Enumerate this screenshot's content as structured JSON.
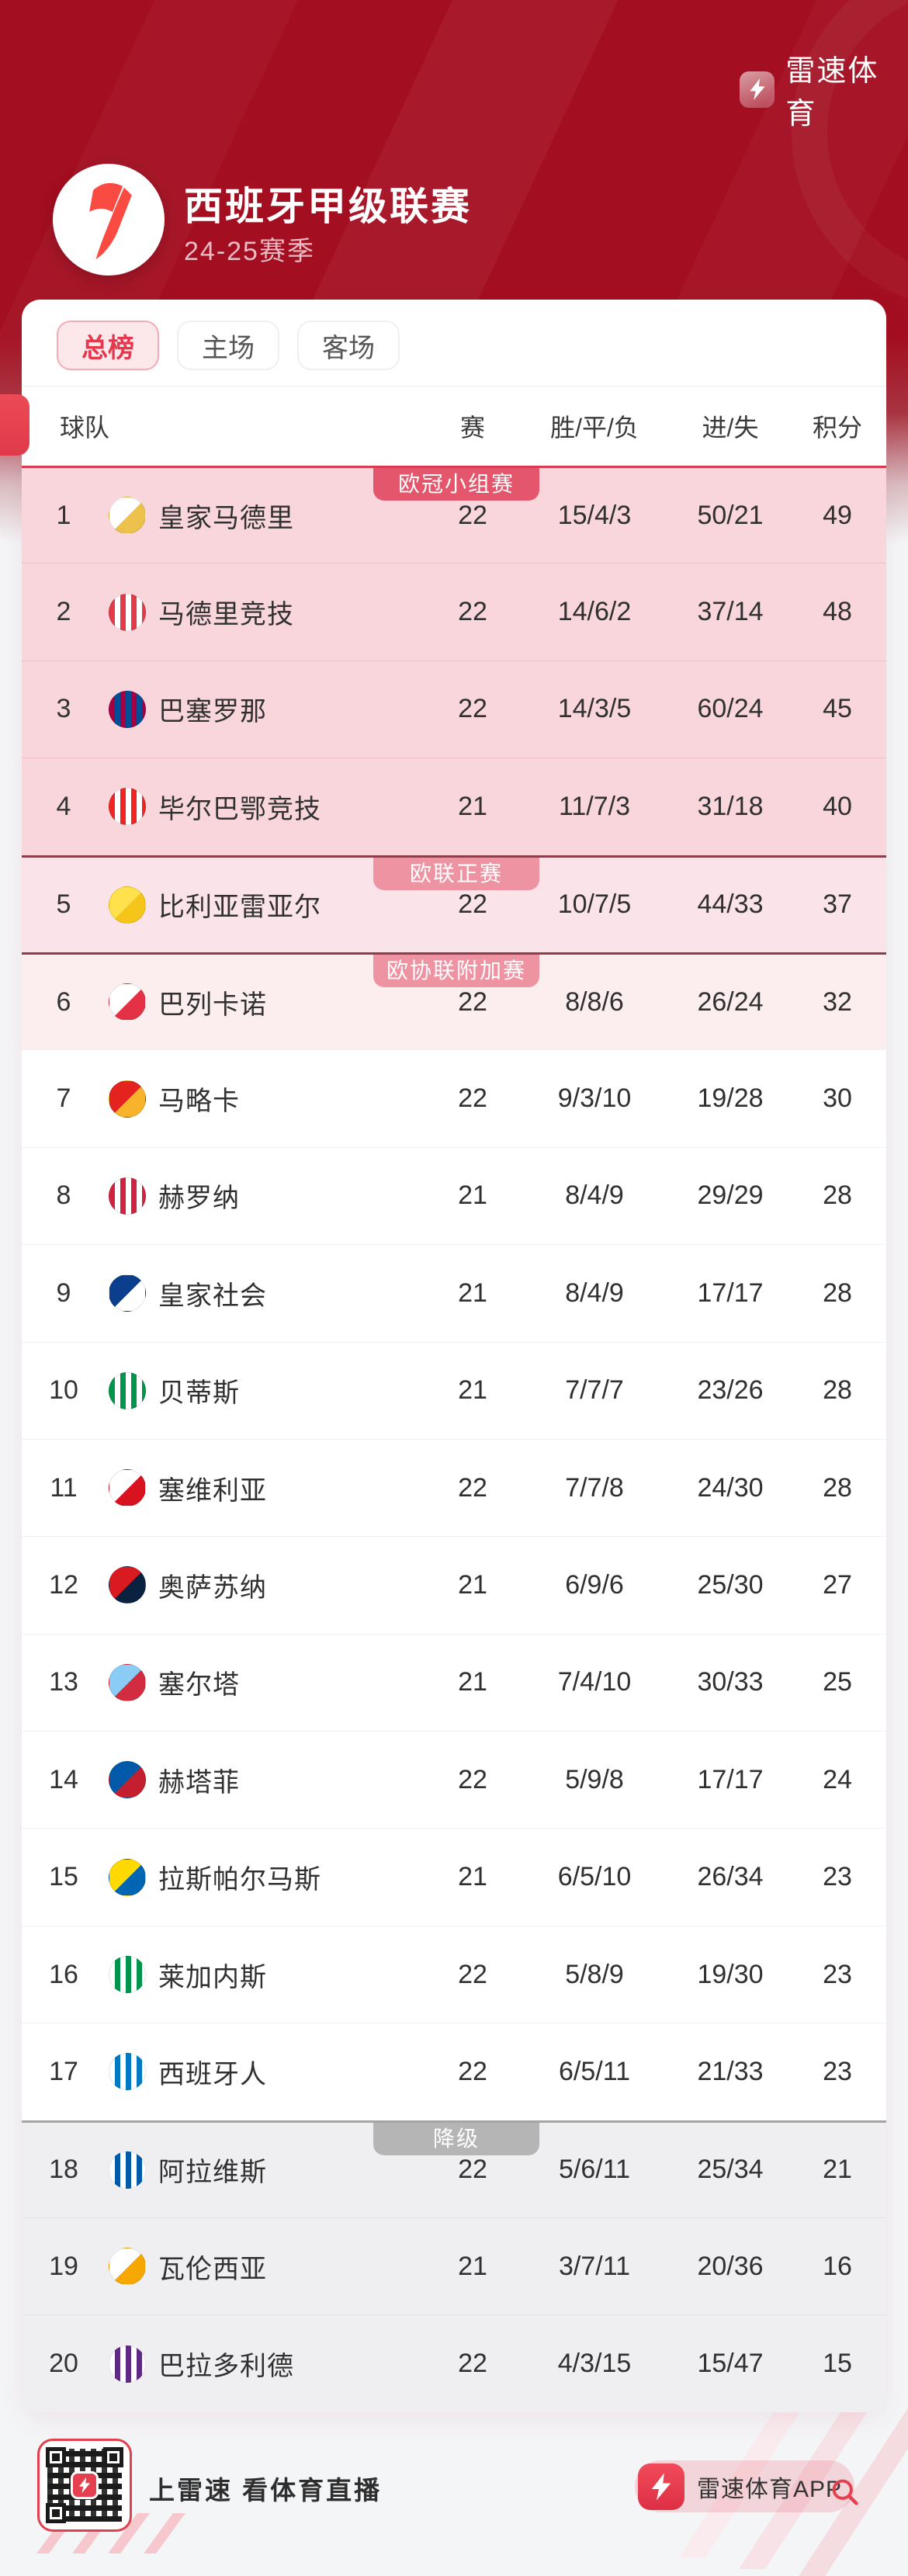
{
  "header": {
    "app_name": "雷速体育",
    "league_title": "西班牙甲级联赛",
    "season": "24-25赛季",
    "brand_red": "#E5404F",
    "laliga_red": "#FA4B42",
    "bg_top": "#A30E20",
    "bg_bottom": "#F4F5F7"
  },
  "tabs": [
    {
      "label": "总榜",
      "active": true
    },
    {
      "label": "主场",
      "active": false
    },
    {
      "label": "客场",
      "active": false
    }
  ],
  "table": {
    "columns": {
      "team": "球队",
      "played": "赛",
      "record": "胜/平/负",
      "goals": "进/失",
      "points": "积分"
    },
    "rows": [
      {
        "rank": "1",
        "team": "皇家马德里",
        "played": "22",
        "record": "15/4/3",
        "goals": "50/21",
        "points": "49",
        "zone": "cl",
        "badge": "欧冠小组赛",
        "crest": {
          "colors": [
            "#FFFFFF",
            "#EDC24C"
          ],
          "stripes": false
        }
      },
      {
        "rank": "2",
        "team": "马德里竞技",
        "played": "22",
        "record": "14/6/2",
        "goals": "37/14",
        "points": "48",
        "zone": "cl",
        "badge": null,
        "crest": {
          "colors": [
            "#E23B4A",
            "#FFFFFF"
          ],
          "stripes": true
        }
      },
      {
        "rank": "3",
        "team": "巴塞罗那",
        "played": "22",
        "record": "14/3/5",
        "goals": "60/24",
        "points": "45",
        "zone": "cl",
        "badge": null,
        "crest": {
          "colors": [
            "#A50044",
            "#004D98"
          ],
          "stripes": true
        }
      },
      {
        "rank": "4",
        "team": "毕尔巴鄂竞技",
        "played": "21",
        "record": "11/7/3",
        "goals": "31/18",
        "points": "40",
        "zone": "cl",
        "badge": null,
        "crest": {
          "colors": [
            "#EE2523",
            "#FFFFFF"
          ],
          "stripes": true
        }
      },
      {
        "rank": "5",
        "team": "比利亚雷亚尔",
        "played": "22",
        "record": "10/7/5",
        "goals": "44/33",
        "points": "37",
        "zone": "el",
        "badge": "欧联正赛",
        "crest": {
          "colors": [
            "#FFE14D",
            "#F5C51A"
          ],
          "stripes": false
        }
      },
      {
        "rank": "6",
        "team": "巴列卡诺",
        "played": "22",
        "record": "8/8/6",
        "goals": "26/24",
        "points": "32",
        "zone": "ecl",
        "badge": "欧协联附加赛",
        "crest": {
          "colors": [
            "#FFFFFF",
            "#E53145"
          ],
          "stripes": false
        }
      },
      {
        "rank": "7",
        "team": "马略卡",
        "played": "22",
        "record": "9/3/10",
        "goals": "19/28",
        "points": "30",
        "zone": "none",
        "badge": null,
        "crest": {
          "colors": [
            "#E4231F",
            "#F7B32B"
          ],
          "stripes": false
        }
      },
      {
        "rank": "8",
        "team": "赫罗纳",
        "played": "21",
        "record": "8/4/9",
        "goals": "29/29",
        "points": "28",
        "zone": "none",
        "badge": null,
        "crest": {
          "colors": [
            "#CF2341",
            "#FFFFFF"
          ],
          "stripes": true
        }
      },
      {
        "rank": "9",
        "team": "皇家社会",
        "played": "21",
        "record": "8/4/9",
        "goals": "17/17",
        "points": "28",
        "zone": "none",
        "badge": null,
        "crest": {
          "colors": [
            "#0B3E8D",
            "#FFFFFF"
          ],
          "stripes": false
        }
      },
      {
        "rank": "10",
        "team": "贝蒂斯",
        "played": "21",
        "record": "7/7/7",
        "goals": "23/26",
        "points": "28",
        "zone": "none",
        "badge": null,
        "crest": {
          "colors": [
            "#00954C",
            "#FFFFFF"
          ],
          "stripes": true
        }
      },
      {
        "rank": "11",
        "team": "塞维利亚",
        "played": "22",
        "record": "7/7/8",
        "goals": "24/30",
        "points": "28",
        "zone": "none",
        "badge": null,
        "crest": {
          "colors": [
            "#FFFFFF",
            "#D8121F"
          ],
          "stripes": false
        }
      },
      {
        "rank": "12",
        "team": "奥萨苏纳",
        "played": "21",
        "record": "6/9/6",
        "goals": "25/30",
        "points": "27",
        "zone": "none",
        "badge": null,
        "crest": {
          "colors": [
            "#D91A21",
            "#0A2240"
          ],
          "stripes": false
        }
      },
      {
        "rank": "13",
        "team": "塞尔塔",
        "played": "21",
        "record": "7/4/10",
        "goals": "30/33",
        "points": "25",
        "zone": "none",
        "badge": null,
        "crest": {
          "colors": [
            "#8ACCF5",
            "#D12C3F"
          ],
          "stripes": false
        }
      },
      {
        "rank": "14",
        "team": "赫塔菲",
        "played": "22",
        "record": "5/9/8",
        "goals": "17/17",
        "points": "24",
        "zone": "none",
        "badge": null,
        "crest": {
          "colors": [
            "#0059A9",
            "#C41F2E"
          ],
          "stripes": false
        }
      },
      {
        "rank": "15",
        "team": "拉斯帕尔马斯",
        "played": "21",
        "record": "6/5/10",
        "goals": "26/34",
        "points": "23",
        "zone": "none",
        "badge": null,
        "crest": {
          "colors": [
            "#FFD900",
            "#0066B3"
          ],
          "stripes": false
        }
      },
      {
        "rank": "16",
        "team": "莱加内斯",
        "played": "22",
        "record": "5/8/9",
        "goals": "19/30",
        "points": "23",
        "zone": "none",
        "badge": null,
        "crest": {
          "colors": [
            "#FFFFFF",
            "#00954C"
          ],
          "stripes": true
        }
      },
      {
        "rank": "17",
        "team": "西班牙人",
        "played": "22",
        "record": "6/5/11",
        "goals": "21/33",
        "points": "23",
        "zone": "none",
        "badge": null,
        "crest": {
          "colors": [
            "#FFFFFF",
            "#007AC2"
          ],
          "stripes": true
        }
      },
      {
        "rank": "18",
        "team": "阿拉维斯",
        "played": "22",
        "record": "5/6/11",
        "goals": "25/34",
        "points": "21",
        "zone": "rel",
        "badge": "降级",
        "crest": {
          "colors": [
            "#FFFFFF",
            "#005BAB"
          ],
          "stripes": true
        }
      },
      {
        "rank": "19",
        "team": "瓦伦西亚",
        "played": "21",
        "record": "3/7/11",
        "goals": "20/36",
        "points": "16",
        "zone": "rel",
        "badge": null,
        "crest": {
          "colors": [
            "#FFFFFF",
            "#F7A800"
          ],
          "stripes": false
        }
      },
      {
        "rank": "20",
        "team": "巴拉多利德",
        "played": "22",
        "record": "4/3/15",
        "goals": "15/47",
        "points": "15",
        "zone": "rel",
        "badge": null,
        "crest": {
          "colors": [
            "#FFFFFF",
            "#5F2A84"
          ],
          "stripes": true
        }
      }
    ]
  },
  "zones": {
    "cl": {
      "row_bg": "#F8D6DC",
      "divider": "#F1C1CB",
      "badge_bg": "#E4566B",
      "line": "#D93A52"
    },
    "el": {
      "row_bg": "#FBE4E9",
      "divider": "#F1C1CB",
      "badge_bg": "#EE93A2",
      "line": "#8E3D4B"
    },
    "ecl": {
      "row_bg": "#FCEDEF",
      "divider": "#F1C1CB",
      "badge_bg": "#EE93A2",
      "line": "#8E3D4B"
    },
    "none": {
      "row_bg": "#FFFFFF",
      "divider": "#F0F0F1"
    },
    "rel": {
      "row_bg": "#EFEFF1",
      "divider": "#E3E3E6",
      "badge_bg": "#B5B5B6",
      "line": "#A5A5A7"
    }
  },
  "footer": {
    "slogan": "上雷速 看体育直播",
    "app_button_label": "雷速体育APP",
    "qr_icon": "qr-code-with-lightning",
    "search_icon_color": "#E4404E"
  }
}
